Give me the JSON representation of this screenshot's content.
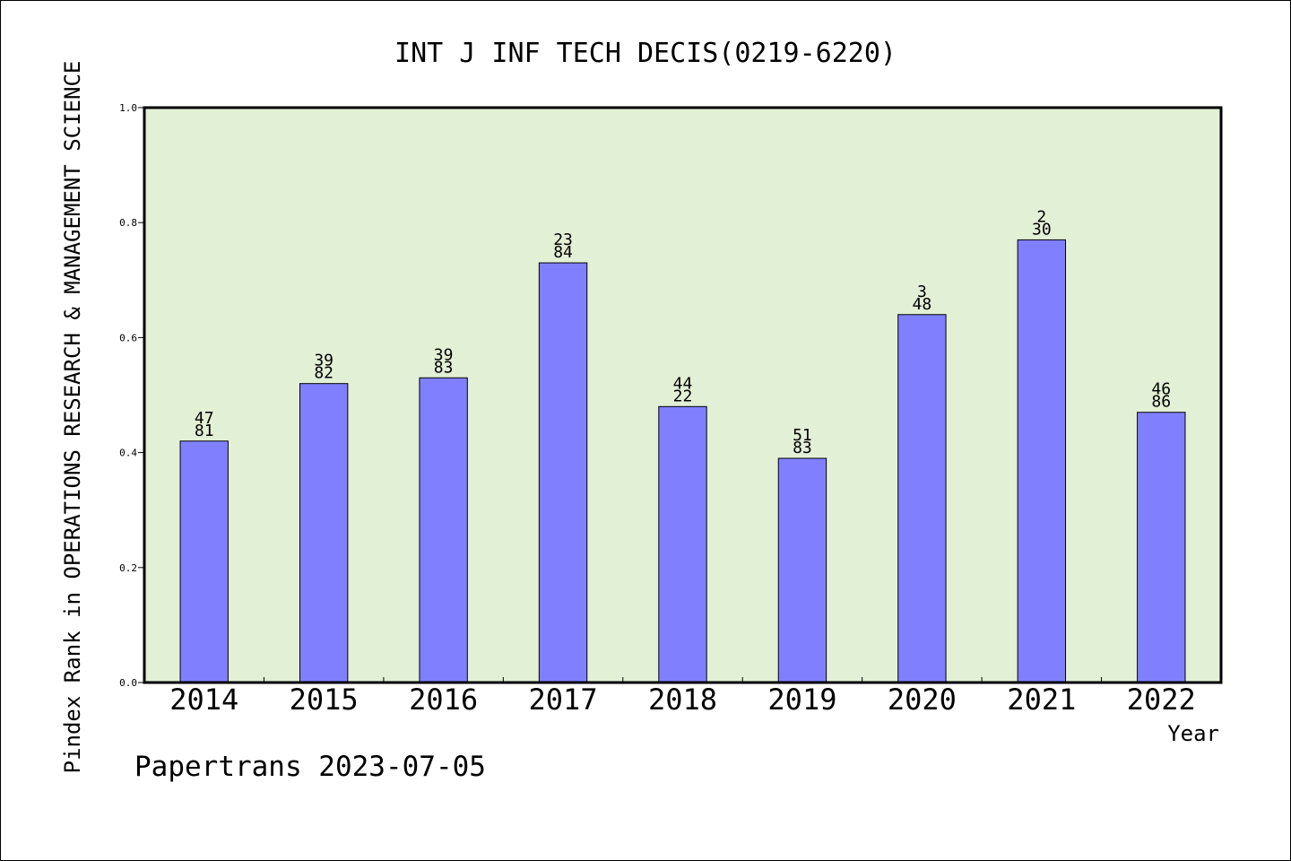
{
  "chart_data": {
    "type": "bar",
    "title": "INT J INF TECH DECIS(0219-6220)",
    "xlabel": "Year",
    "ylabel": "Pindex Rank in OPERATIONS RESEARCH & MANAGEMENT SCIENCE",
    "ylim": [
      0,
      1.0
    ],
    "yticks": [
      "0.0",
      "0.2",
      "0.4",
      "0.6",
      "0.8",
      "1.0"
    ],
    "categories": [
      "2014",
      "2015",
      "2016",
      "2017",
      "2018",
      "2019",
      "2020",
      "2021",
      "2022"
    ],
    "values": [
      0.42,
      0.52,
      0.53,
      0.73,
      0.48,
      0.39,
      0.64,
      0.77,
      0.47
    ],
    "labels_top": [
      "47",
      "39",
      "39",
      "23",
      "44",
      "51",
      "3",
      "2",
      "46"
    ],
    "labels_bottom": [
      "81",
      "82",
      "83",
      "84",
      "22",
      "83",
      "48",
      "30",
      "86"
    ],
    "grid": false,
    "colors": {
      "bar": "#8080ff",
      "plot_background": "#e2f0d6",
      "axis": "#000000"
    }
  },
  "footer": {
    "text": "Papertrans 2023-07-05"
  }
}
